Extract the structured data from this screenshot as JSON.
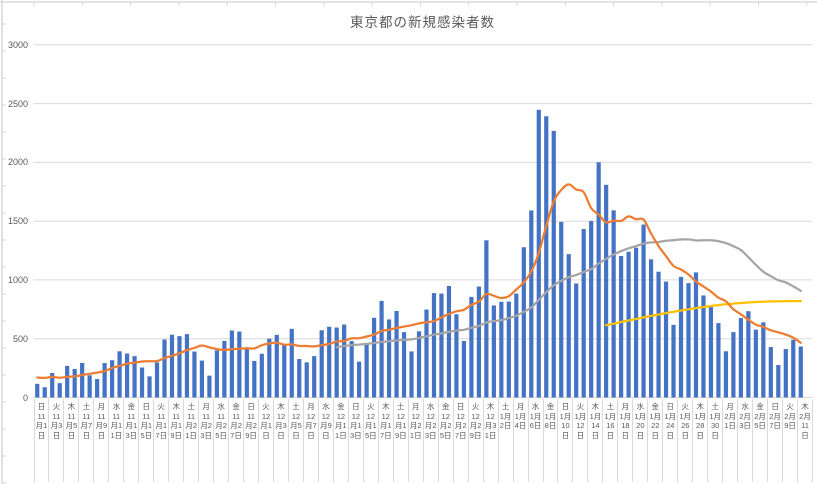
{
  "title": "東京都の新規感染者数",
  "colors": {
    "bar": "#4472C4",
    "line_orange": "#ED7D31",
    "line_gray": "#A5A5A5",
    "line_yellow": "#FFC000",
    "gridline": "#D9D9D9",
    "worksheet_grid": "#D9D9D9",
    "axis_text": "#595959",
    "background": "#FFFFFF"
  },
  "y_axis": {
    "ticks": [
      0,
      500,
      1000,
      1500,
      2000,
      2500,
      3000
    ],
    "max": 3000
  },
  "x_axis": {
    "labels": [
      [
        "日",
        "11月1日"
      ],
      [
        "火",
        "11月3日"
      ],
      [
        "木",
        "11月5日"
      ],
      [
        "土",
        "11月7日"
      ],
      [
        "月",
        "11月9日"
      ],
      [
        "水",
        "11月11日"
      ],
      [
        "金",
        "11月13日"
      ],
      [
        "日",
        "11月15日"
      ],
      [
        "火",
        "11月17日"
      ],
      [
        "木",
        "11月19日"
      ],
      [
        "土",
        "11月21日"
      ],
      [
        "月",
        "11月23日"
      ],
      [
        "水",
        "11月25日"
      ],
      [
        "金",
        "11月27日"
      ],
      [
        "日",
        "11月29日"
      ],
      [
        "火",
        "12月1日"
      ],
      [
        "木",
        "12月3日"
      ],
      [
        "土",
        "12月5日"
      ],
      [
        "月",
        "12月7日"
      ],
      [
        "水",
        "12月9日"
      ],
      [
        "金",
        "12月11日"
      ],
      [
        "日",
        "12月13日"
      ],
      [
        "火",
        "12月15日"
      ],
      [
        "木",
        "12月17日"
      ],
      [
        "土",
        "12月19日"
      ],
      [
        "月",
        "12月21日"
      ],
      [
        "水",
        "12月23日"
      ],
      [
        "金",
        "12月25日"
      ],
      [
        "日",
        "12月27日"
      ],
      [
        "火",
        "12月29日"
      ],
      [
        "木",
        "12月31日"
      ],
      [
        "土",
        "1月2日"
      ],
      [
        "月",
        "1月4日"
      ],
      [
        "水",
        "1月6日"
      ],
      [
        "金",
        "1月8日"
      ],
      [
        "日",
        "1月10日"
      ],
      [
        "火",
        "1月12日"
      ],
      [
        "木",
        "1月14日"
      ],
      [
        "土",
        "1月16日"
      ],
      [
        "月",
        "1月18日"
      ],
      [
        "水",
        "1月20日"
      ],
      [
        "金",
        "1月22日"
      ],
      [
        "日",
        "1月24日"
      ],
      [
        "火",
        "1月26日"
      ],
      [
        "木",
        "1月28日"
      ],
      [
        "土",
        "1月30日"
      ],
      [
        "月",
        "2月1日"
      ],
      [
        "水",
        "2月3日"
      ],
      [
        "金",
        "2月5日"
      ],
      [
        "日",
        "2月7日"
      ],
      [
        "火",
        "2月9日"
      ],
      [
        "木",
        "2月11日"
      ]
    ]
  },
  "chart_data": {
    "type": "bar",
    "title": "東京都の新規感染者数",
    "xlabel": "",
    "ylabel": "",
    "ylim": [
      0,
      3000
    ],
    "grid": true,
    "legend": "none",
    "x": [
      "11月1日",
      "11月2日",
      "11月3日",
      "11月4日",
      "11月5日",
      "11月6日",
      "11月7日",
      "11月8日",
      "11月9日",
      "11月10日",
      "11月11日",
      "11月12日",
      "11月13日",
      "11月14日",
      "11月15日",
      "11月16日",
      "11月17日",
      "11月18日",
      "11月19日",
      "11月20日",
      "11月21日",
      "11月22日",
      "11月23日",
      "11月24日",
      "11月25日",
      "11月26日",
      "11月27日",
      "11月28日",
      "11月29日",
      "11月30日",
      "12月1日",
      "12月2日",
      "12月3日",
      "12月4日",
      "12月5日",
      "12月6日",
      "12月7日",
      "12月8日",
      "12月9日",
      "12月10日",
      "12月11日",
      "12月12日",
      "12月13日",
      "12月14日",
      "12月15日",
      "12月16日",
      "12月17日",
      "12月18日",
      "12月19日",
      "12月20日",
      "12月21日",
      "12月22日",
      "12月23日",
      "12月24日",
      "12月25日",
      "12月26日",
      "12月27日",
      "12月28日",
      "12月29日",
      "12月30日",
      "12月31日",
      "1月1日",
      "1月2日",
      "1月3日",
      "1月4日",
      "1月5日",
      "1月6日",
      "1月7日",
      "1月8日",
      "1月9日",
      "1月10日",
      "1月11日",
      "1月12日",
      "1月13日",
      "1月14日",
      "1月15日",
      "1月16日",
      "1月17日",
      "1月18日",
      "1月19日",
      "1月20日",
      "1月21日",
      "1月22日",
      "1月23日",
      "1月24日",
      "1月25日",
      "1月26日",
      "1月27日",
      "1月28日",
      "1月29日",
      "1月30日",
      "1月31日",
      "2月1日",
      "2月2日",
      "2月3日",
      "2月4日",
      "2月5日",
      "2月6日",
      "2月7日",
      "2月8日",
      "2月9日",
      "2月10日",
      "2月11日"
    ],
    "series": [
      {
        "name": "bars-blue-daily-cases",
        "type": "bar",
        "color": "#4472C4",
        "start": 0,
        "values": [
          116,
          87,
          209,
          122,
          269,
          242,
          294,
          189,
          157,
          293,
          317,
          393,
          374,
          352,
          255,
          180,
          298,
          493,
          534,
          522,
          539,
          391,
          314,
          186,
          401,
          481,
          570,
          561,
          418,
          311,
          372,
          500,
          533,
          449,
          584,
          327,
          299,
          352,
          572,
          602,
          595,
          621,
          480,
          305,
          460,
          678,
          822,
          664,
          736,
          556,
          392,
          563,
          748,
          888,
          884,
          949,
          708,
          481,
          856,
          944,
          1337,
          783,
          814,
          816,
          884,
          1278,
          1591,
          2447,
          2392,
          2268,
          1494,
          1219,
          970,
          1433,
          1502,
          2001,
          1809,
          1592,
          1204,
          1240,
          1274,
          1471,
          1175,
          1070,
          986,
          618,
          1026,
          973,
          1064,
          868,
          769,
          633,
          393,
          556,
          676,
          734,
          577,
          639,
          429,
          276,
          412,
          491,
          434
        ]
      },
      {
        "name": "line-orange-7day-average",
        "type": "line",
        "color": "#ED7D31",
        "start": 0,
        "values": [
          170,
          167,
          175,
          168,
          175,
          180,
          191,
          202,
          212,
          224,
          252,
          269,
          288,
          296,
          306,
          309,
          310,
          335,
          355,
          376,
          403,
          422,
          442,
          426,
          412,
          405,
          412,
          415,
          419,
          418,
          445,
          459,
          466,
          449,
          452,
          439,
          438,
          435,
          445,
          455,
          476,
          481,
          503,
          504,
          519,
          534,
          566,
          576,
          592,
          603,
          615,
          630,
          640,
          650,
          681,
          711,
          733,
          746,
          788,
          816,
          880,
          865,
          846,
          862,
          919,
          979,
          1072,
          1230,
          1460,
          1668,
          1765,
          1813,
          1769,
          1746,
          1611,
          1555,
          1490,
          1504,
          1502,
          1540,
          1517,
          1513,
          1395,
          1289,
          1203,
          1119,
          1089,
          1046,
          987,
          944,
          901,
          850,
          818,
          751,
          708,
          661,
          620,
          601,
          572,
          555,
          535,
          508,
          465
        ]
      },
      {
        "name": "line-gray-28day-average",
        "type": "line",
        "color": "#A5A5A5",
        "start": 40,
        "values": [
          428,
          438,
          446,
          450,
          456,
          463,
          473,
          478,
          485,
          491,
          494,
          507,
          520,
          534,
          545,
          559,
          570,
          576,
          593,
          609,
          638,
          650,
          658,
          675,
          696,
          729,
          766,
          831,
          896,
          954,
          991,
          1023,
          1042,
          1068,
          1093,
          1140,
          1179,
          1216,
          1245,
          1269,
          1288,
          1309,
          1319,
          1323,
          1333,
          1338,
          1344,
          1345,
          1336,
          1338,
          1337,
          1330,
          1313,
          1287,
          1254,
          1193,
          1128,
          1070,
          1032,
          998,
          979,
          945,
          907
        ]
      },
      {
        "name": "line-yellow",
        "type": "line",
        "color": "#FFC000",
        "start": 76,
        "values": [
          615,
          628,
          642,
          655,
          668,
          681,
          694,
          706,
          718,
          729,
          740,
          750,
          760,
          770,
          778,
          786,
          793,
          799,
          804,
          808,
          812,
          815,
          817,
          818,
          819,
          820,
          820
        ]
      }
    ]
  }
}
